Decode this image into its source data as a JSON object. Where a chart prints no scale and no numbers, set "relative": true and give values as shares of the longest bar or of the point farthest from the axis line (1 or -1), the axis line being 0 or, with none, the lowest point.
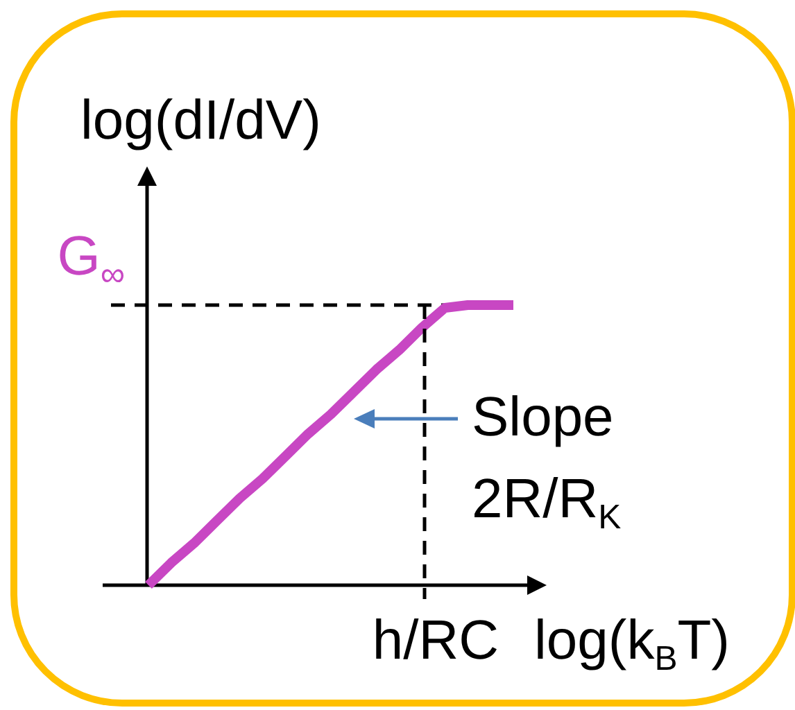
{
  "chart_data": {
    "type": "line",
    "relative": true,
    "categories": [
      null,
      null,
      null,
      null,
      null,
      null,
      null,
      null,
      null,
      null,
      null,
      null,
      null,
      null,
      null,
      null,
      null
    ],
    "series": [
      {
        "color": "#c847c3",
        "values": [
          0,
          0.08,
          0.15,
          0.23,
          0.31,
          0.38,
          0.46,
          0.54,
          0.61,
          0.69,
          0.77,
          0.84,
          0.92,
          0.99,
          1,
          1,
          1
        ]
      }
    ],
    "ylabel": "log(dI/dV)",
    "xlabel": "log(k$_{B}$T)",
    "ref_lines": [
      {
        "axis": "y",
        "value": 1,
        "label": "G$_{∞}$",
        "color": "#000000",
        "line_style": "dashed"
      }
    ],
    "annotations": [
      "Slope\n2R/R$_{K}$",
      "h/RC"
    ],
    "line_style": "solid"
  }
}
